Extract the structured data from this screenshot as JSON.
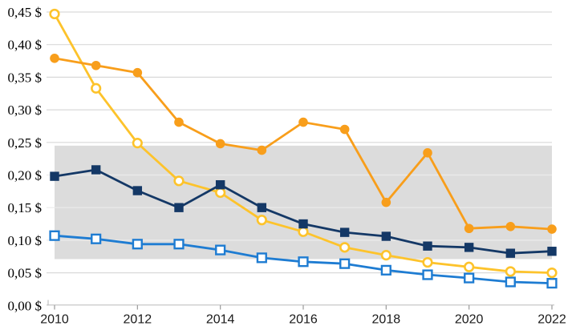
{
  "chart_data": {
    "type": "line",
    "title": "",
    "x": [
      2010,
      2011,
      2012,
      2013,
      2014,
      2015,
      2016,
      2017,
      2018,
      2019,
      2020,
      2021,
      2022
    ],
    "xtick_labels": [
      "2010",
      "2012",
      "2014",
      "2016",
      "2018",
      "2020",
      "2022"
    ],
    "ytick_labels": [
      "0,00 $",
      "0,05 $",
      "0,10 $",
      "0,15 $",
      "0,20 $",
      "0,25 $",
      "0,30 $",
      "0,35 $",
      "0,40 $",
      "0,45 $"
    ],
    "ylim": [
      0,
      0.45
    ],
    "ytick_step": 0.05,
    "grid": true,
    "legend": "none",
    "background_color": "#ffffff",
    "gridline_color": "#d9d9d9",
    "gridline_color_in_band": "#ececec",
    "axis_line_color": "#c0c0c0",
    "tick_color": "#9a9a9a",
    "reference_band": {
      "from": 0.071,
      "to": 0.245,
      "color": "#dcdcdc"
    },
    "series": [
      {
        "name": "light-blue-open-square",
        "marker": "open-square",
        "color": "#1e7cd2",
        "values": [
          0.107,
          0.102,
          0.094,
          0.094,
          0.085,
          0.073,
          0.067,
          0.064,
          0.054,
          0.047,
          0.042,
          0.036,
          0.034
        ]
      },
      {
        "name": "yellow-open-circle",
        "marker": "open-circle",
        "color": "#fdc32b",
        "values": [
          0.447,
          0.333,
          0.249,
          0.191,
          0.173,
          0.131,
          0.113,
          0.089,
          0.077,
          0.066,
          0.059,
          0.052,
          0.05
        ]
      },
      {
        "name": "navy-filled-square",
        "marker": "filled-square",
        "color": "#143866",
        "values": [
          0.198,
          0.208,
          0.176,
          0.15,
          0.185,
          0.15,
          0.125,
          0.112,
          0.106,
          0.091,
          0.089,
          0.08,
          0.083
        ]
      },
      {
        "name": "orange-filled-circle",
        "marker": "filled-circle",
        "color": "#f89e1b",
        "values": [
          0.379,
          0.368,
          0.357,
          0.281,
          0.248,
          0.238,
          0.281,
          0.27,
          0.158,
          0.234,
          0.118,
          0.121,
          0.117
        ]
      }
    ]
  }
}
